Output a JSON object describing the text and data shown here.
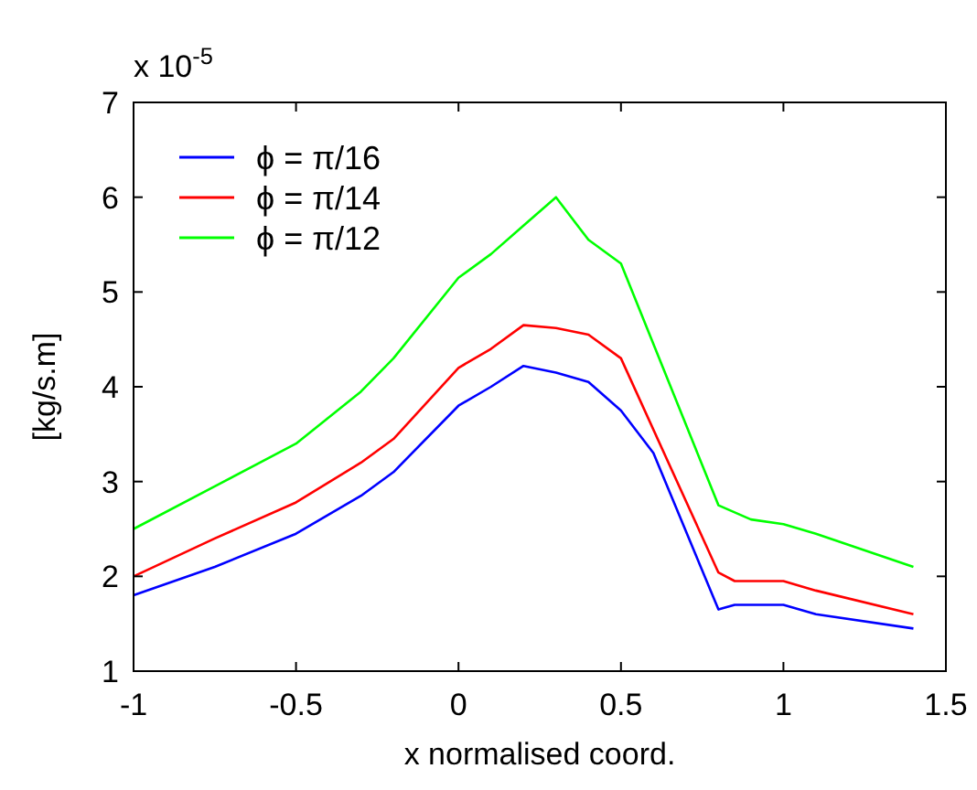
{
  "chart_data": {
    "type": "line",
    "xlabel": "x normalised coord.",
    "ylabel": "[kg/s.m]",
    "annotations": [
      "x 10$^{-5}$"
    ],
    "xlim": [
      -1,
      1.5
    ],
    "xticks": [
      -1,
      -0.5,
      0,
      0.5,
      1,
      1.5
    ],
    "ylim": [
      1,
      7
    ],
    "yticks": [
      1,
      2,
      3,
      4,
      5,
      6,
      7
    ],
    "grid": false,
    "legend": "top left",
    "series": [
      {
        "name": "ϕ = π/16",
        "color": "#0000ff",
        "x": [
          -1,
          -0.75,
          -0.5,
          -0.3,
          -0.2,
          0,
          0.1,
          0.2,
          0.3,
          0.4,
          0.5,
          0.6,
          0.8,
          0.85,
          1,
          1.1,
          1.4
        ],
        "values": [
          1.8,
          2.1,
          2.45,
          2.85,
          3.1,
          3.8,
          4.0,
          4.22,
          4.15,
          4.05,
          3.75,
          3.3,
          1.65,
          1.7,
          1.7,
          1.6,
          1.45
        ]
      },
      {
        "name": "ϕ = π/14",
        "color": "#ff0000",
        "x": [
          -1,
          -0.75,
          -0.5,
          -0.3,
          -0.2,
          0,
          0.1,
          0.2,
          0.3,
          0.4,
          0.5,
          0.8,
          0.85,
          1,
          1.1,
          1.4
        ],
        "values": [
          2.0,
          2.4,
          2.78,
          3.2,
          3.45,
          4.2,
          4.4,
          4.65,
          4.62,
          4.55,
          4.3,
          2.04,
          1.95,
          1.95,
          1.85,
          1.6
        ]
      },
      {
        "name": "ϕ = π/12",
        "color": "#00ff00",
        "x": [
          -1,
          -0.75,
          -0.5,
          -0.3,
          -0.2,
          0,
          0.1,
          0.2,
          0.3,
          0.4,
          0.5,
          0.8,
          0.9,
          1,
          1.1,
          1.4
        ],
        "values": [
          2.5,
          2.95,
          3.4,
          3.95,
          4.3,
          5.15,
          5.4,
          5.7,
          6.0,
          5.55,
          5.3,
          2.75,
          2.6,
          2.55,
          2.45,
          2.1
        ]
      }
    ]
  }
}
